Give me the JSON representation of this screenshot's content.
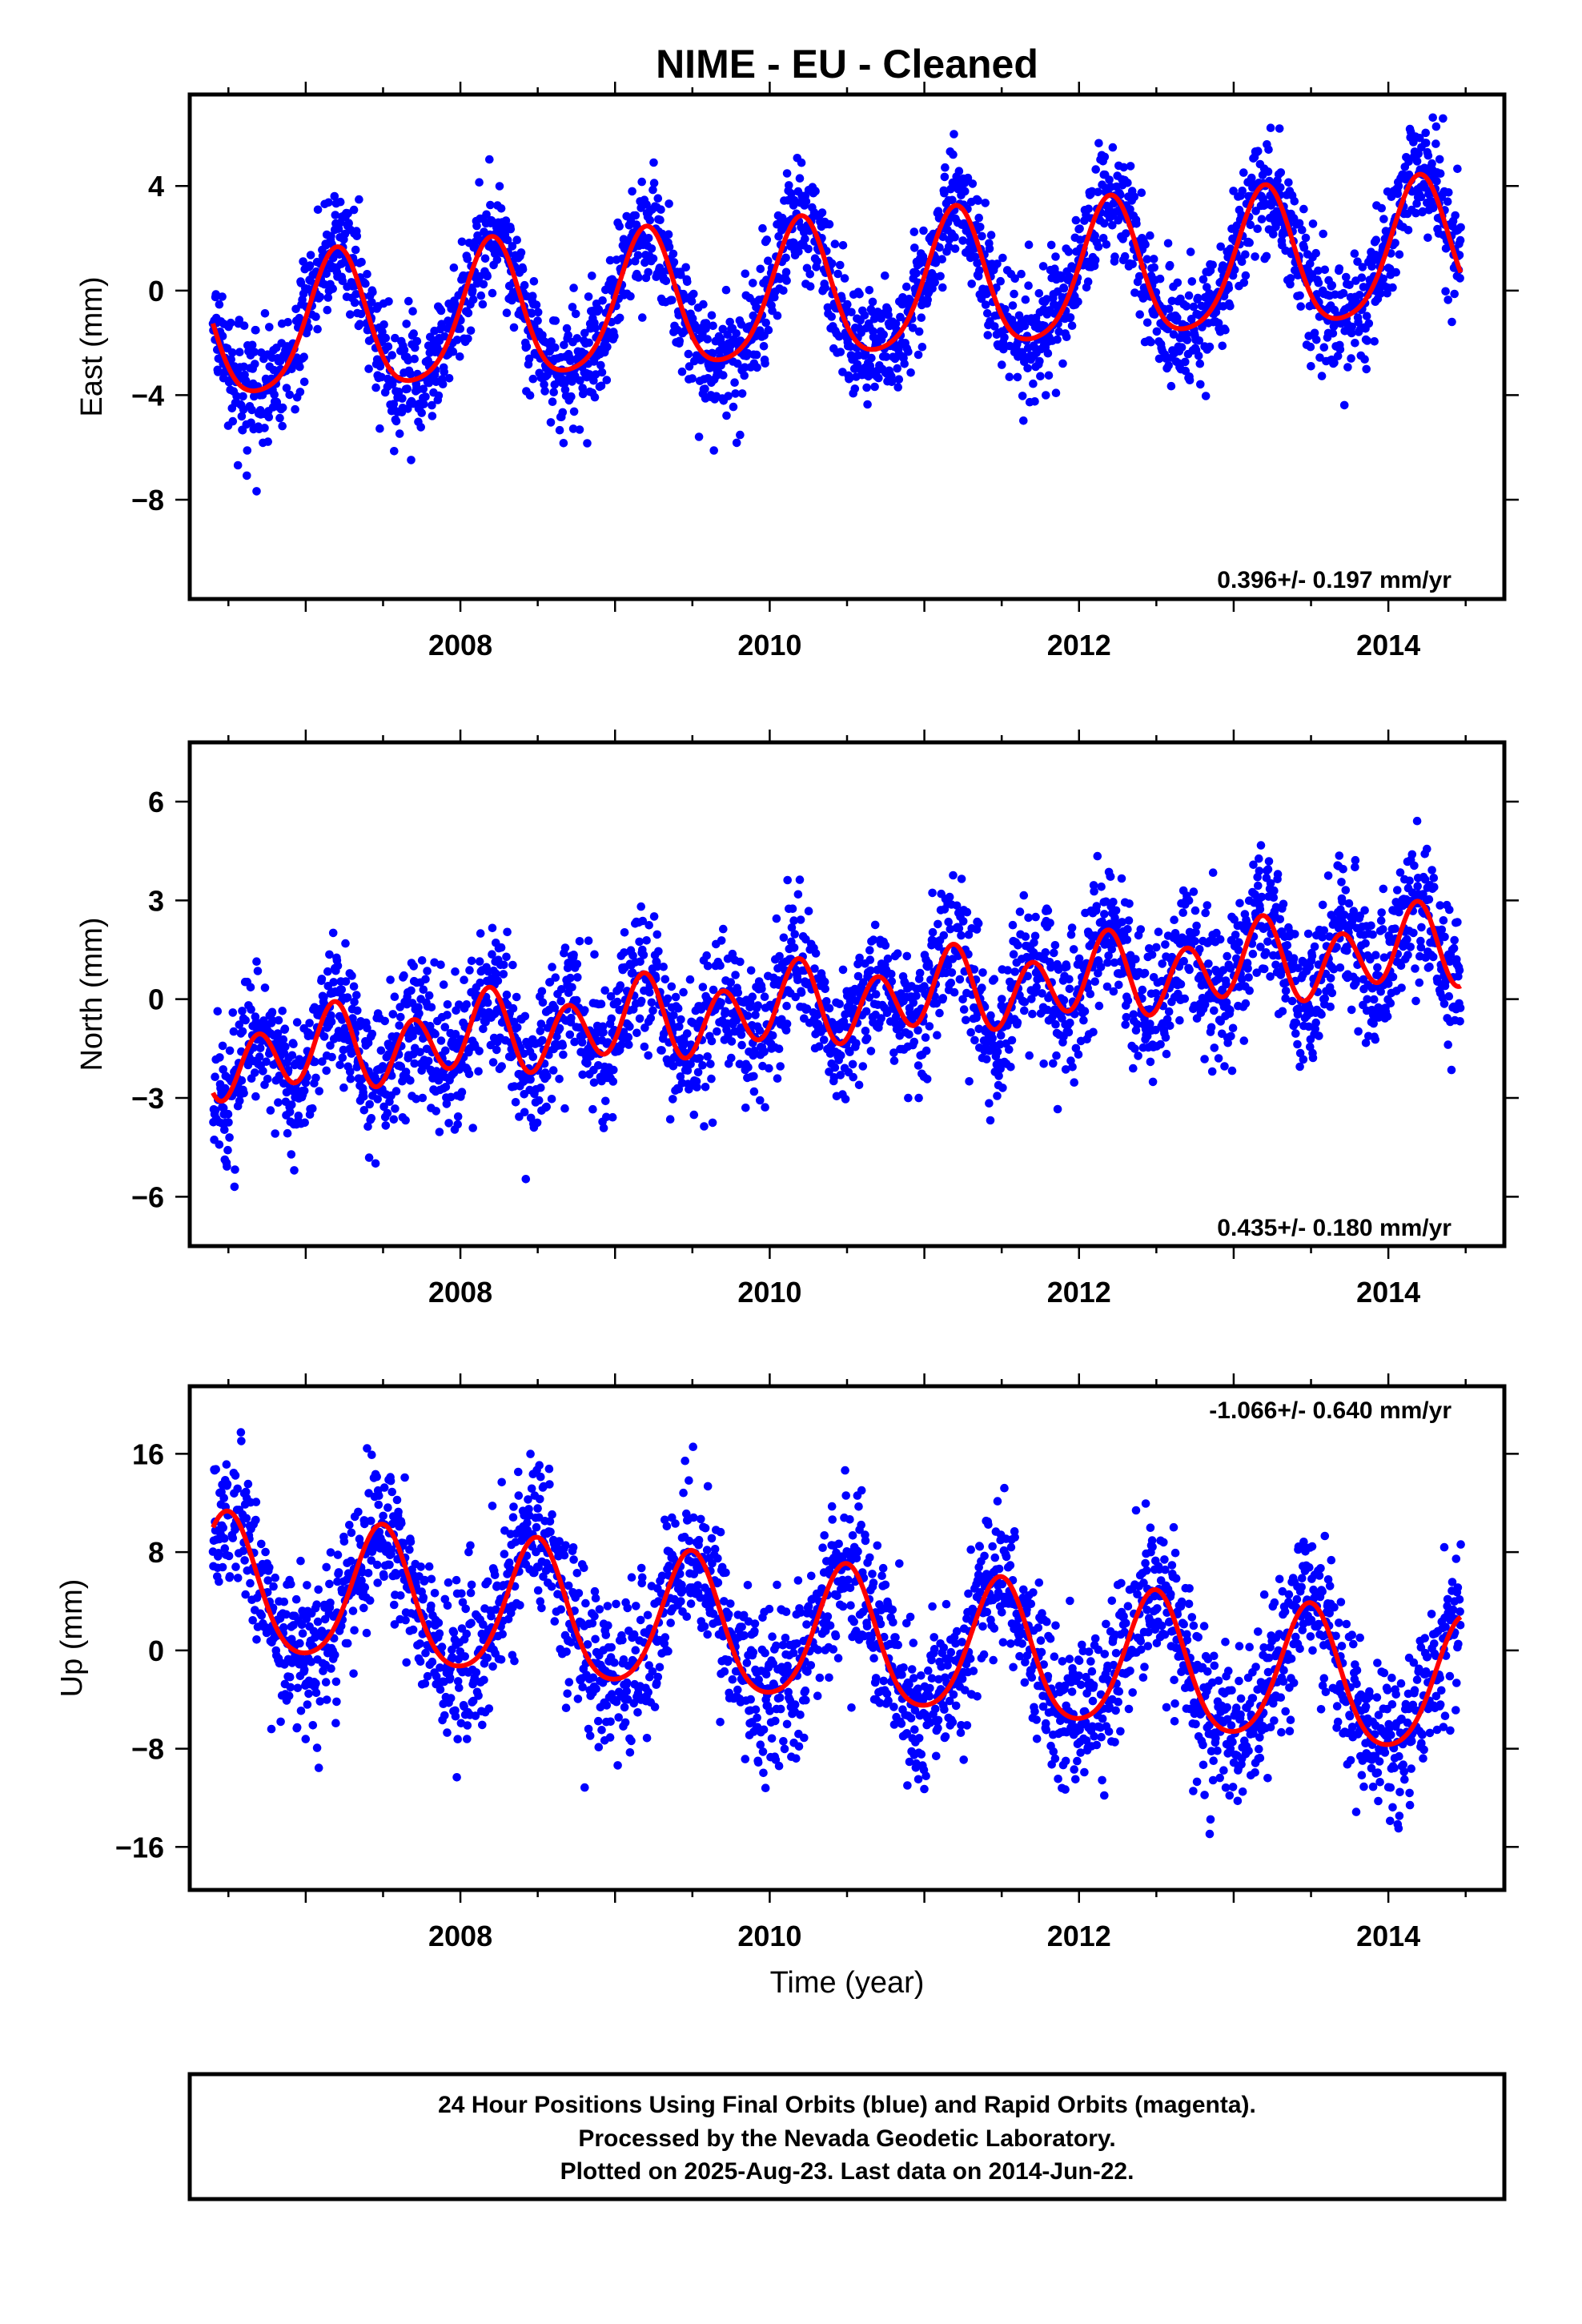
{
  "title": "NIME  - EU - Cleaned",
  "colors": {
    "points": "#0000ff",
    "model": "#ff0000",
    "frame": "#000000"
  },
  "x_tick_labels": [
    "2008",
    "2010",
    "2012",
    "2014"
  ],
  "x_axis_label": "Time (year)",
  "footer": {
    "line1": "24 Hour Positions Using Final Orbits (blue) and Rapid Orbits (magenta).",
    "line2": "Processed by the Nevada Geodetic Laboratory.",
    "line3": "Plotted on 2025-Aug-23. Last data on 2014-Jun-22."
  },
  "chart_data": [
    {
      "type": "scatter",
      "ylabel": "East (mm)",
      "rate_label": "0.396+/- 0.197 mm/yr",
      "xlim": [
        2006.25,
        2014.75
      ],
      "ylim": [
        -11.8,
        7.5
      ],
      "xticks": [
        2008,
        2010,
        2012,
        2014
      ],
      "yticks": [
        4,
        0,
        -4,
        -8
      ],
      "ytick_labels": [
        "4",
        "0",
        "−4",
        "−8"
      ],
      "data_range": [
        2006.4,
        2014.47
      ],
      "series": [
        {
          "kind": "daily positions",
          "color": "#0000ff"
        },
        {
          "kind": "model fit",
          "color": "#ff0000",
          "fit": {
            "t0": 2010.0,
            "intercept": -0.3,
            "rate_mm_per_yr": 0.396,
            "annual_cos": 0.85,
            "annual_sin": 2.5,
            "semiannual_cos": -0.4,
            "semiannual_sin": 0.2,
            "noise_sd": 1.1
          }
        }
      ]
    },
    {
      "type": "scatter",
      "ylabel": "North (mm)",
      "rate_label": "0.435+/- 0.180 mm/yr",
      "xlim": [
        2006.25,
        2014.75
      ],
      "ylim": [
        -7.5,
        7.8
      ],
      "xticks": [
        2008,
        2010,
        2012,
        2014
      ],
      "yticks": [
        6,
        3,
        0,
        -3,
        -6
      ],
      "ytick_labels": [
        "6",
        "3",
        "0",
        "−3",
        "−6"
      ],
      "data_range": [
        2006.4,
        2014.47
      ],
      "series": [
        {
          "kind": "daily positions",
          "color": "#0000ff"
        },
        {
          "kind": "model fit",
          "color": "#ff0000",
          "fit": {
            "t0": 2010.0,
            "intercept": -0.3,
            "rate_mm_per_yr": 0.435,
            "annual_cos": 0.3,
            "annual_sin": 0.3,
            "semiannual_cos": -0.8,
            "semiannual_sin": 0.7,
            "noise_sd": 1.05
          }
        }
      ]
    },
    {
      "type": "scatter",
      "ylabel": "Up (mm)",
      "rate_label": "-1.066+/- 0.640 mm/yr",
      "xlim": [
        2006.25,
        2014.75
      ],
      "ylim": [
        -19.5,
        21.5
      ],
      "xticks": [
        2008,
        2010,
        2012,
        2014
      ],
      "yticks": [
        16,
        8,
        0,
        -8,
        -16
      ],
      "ytick_labels": [
        "16",
        "8",
        "0",
        "−8",
        "−16"
      ],
      "data_range": [
        2006.4,
        2014.47
      ],
      "series": [
        {
          "kind": "daily positions",
          "color": "#0000ff"
        },
        {
          "kind": "model fit",
          "color": "#ff0000",
          "fit": {
            "t0": 2010.0,
            "intercept": 1.3,
            "rate_mm_per_yr": -1.066,
            "annual_cos": -5.5,
            "annual_sin": 0.3,
            "semiannual_cos": 0.8,
            "semiannual_sin": 0.0,
            "noise_sd": 3.2
          }
        }
      ]
    }
  ]
}
